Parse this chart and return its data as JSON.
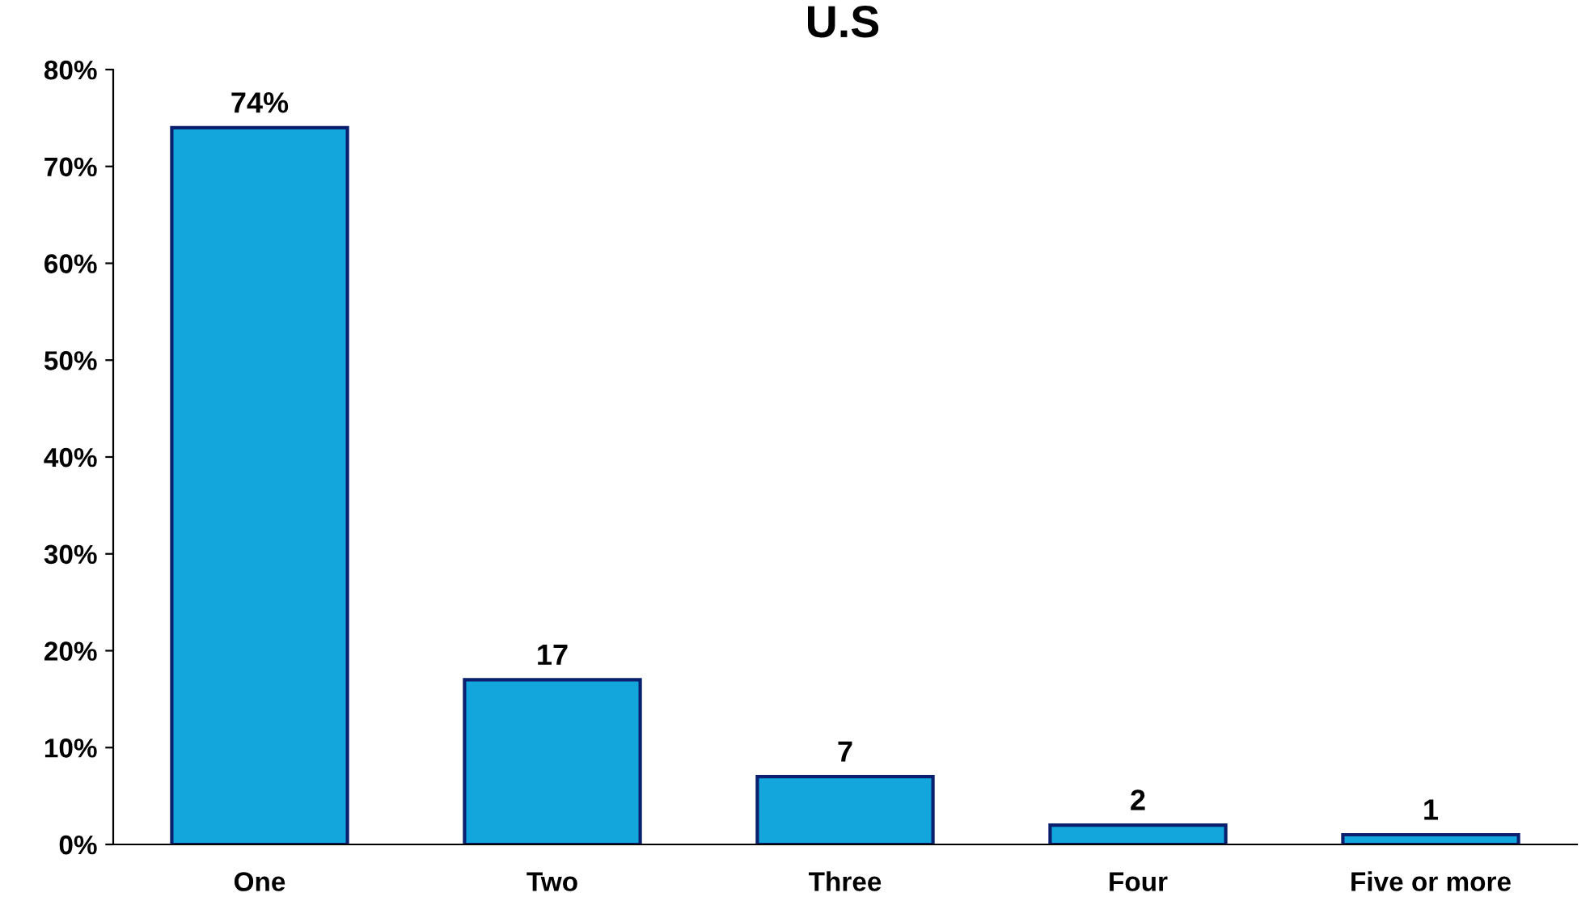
{
  "chart_data": {
    "type": "bar",
    "title": "U.S",
    "categories": [
      "One",
      "Two",
      "Three",
      "Four",
      "Five or more"
    ],
    "values": [
      74,
      17,
      7,
      2,
      1
    ],
    "value_labels": [
      "74%",
      "17",
      "7",
      "2",
      "1"
    ],
    "color": "#12a6dc",
    "ylim": [
      0,
      80
    ],
    "yticks": [
      {
        "value": 0,
        "label": "0%"
      },
      {
        "value": 10,
        "label": "10%"
      },
      {
        "value": 20,
        "label": "20%"
      },
      {
        "value": 30,
        "label": "30%"
      },
      {
        "value": 40,
        "label": "40%"
      },
      {
        "value": 50,
        "label": "50%"
      },
      {
        "value": 60,
        "label": "60%"
      },
      {
        "value": 70,
        "label": "70%"
      },
      {
        "value": 80,
        "label": "80%"
      }
    ],
    "grid": false
  }
}
